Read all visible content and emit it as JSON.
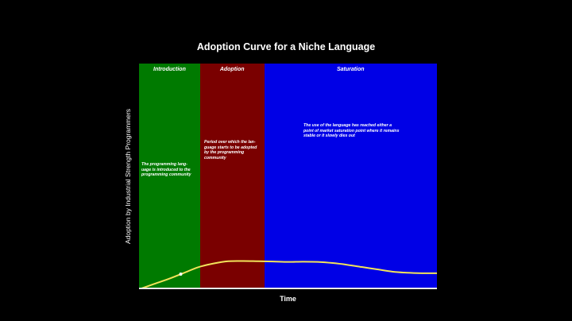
{
  "chart_data": {
    "type": "line",
    "title": "Adoption Curve for a Niche Language",
    "xlabel": "Time",
    "ylabel": "Adoption by Industrial Strength Programmers",
    "xlim": [
      0,
      100
    ],
    "ylim": [
      0,
      100
    ],
    "grid": false,
    "legend": "none",
    "phases": [
      {
        "name": "Introduction",
        "x_start": 0,
        "x_end": 20.5,
        "color": "#007a00",
        "description": "The programming lang-\nuage is introduced to the\nprogramming community"
      },
      {
        "name": "Adoption",
        "x_start": 20.5,
        "x_end": 42,
        "color": "#7a0000",
        "description": "Period over which the lan-\nguage starts to be adopted\nby the programming\ncommunity"
      },
      {
        "name": "Saturation",
        "x_start": 42,
        "x_end": 100,
        "color": "#0000e6",
        "description": "The use of the language has reached either a\npoint of market saturation point where it remains\nstable or it slowly dies out"
      }
    ],
    "series": [
      {
        "color": "#f2e35a",
        "x": [
          0,
          5,
          10,
          15,
          20,
          25,
          30,
          35,
          40,
          45,
          50,
          55,
          60,
          65,
          70,
          75,
          80,
          85,
          90,
          95,
          100
        ],
        "values": [
          0,
          2.3,
          4.6,
          7.2,
          9.8,
          11.4,
          12.4,
          12.5,
          12.4,
          12.3,
          12.1,
          12.2,
          12.1,
          11.6,
          10.8,
          9.8,
          8.8,
          7.8,
          7.3,
          7.1,
          7.1
        ]
      }
    ],
    "marker": {
      "x": 14,
      "y": 6.7
    }
  }
}
